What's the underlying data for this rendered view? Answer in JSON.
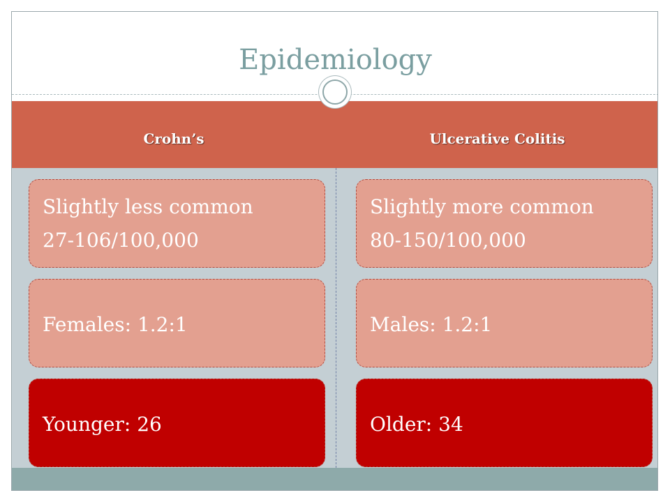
{
  "slide": {
    "title": "Epidemiology",
    "columns": [
      {
        "header": "Crohn’s",
        "cards": [
          {
            "lines": [
              "Slightly less common",
              "27-106/100,000"
            ],
            "style": "light"
          },
          {
            "lines": [
              "Females: 1.2:1"
            ],
            "style": "light"
          },
          {
            "lines": [
              "Younger: 26"
            ],
            "style": "dark"
          }
        ]
      },
      {
        "header": "Ulcerative Colitis",
        "cards": [
          {
            "lines": [
              "Slightly more common",
              "80-150/100,000"
            ],
            "style": "light"
          },
          {
            "lines": [
              "Males: 1.2:1"
            ],
            "style": "light"
          },
          {
            "lines": [
              "Older: 34"
            ],
            "style": "dark"
          }
        ]
      }
    ]
  },
  "colors": {
    "title": "#7a9ea0",
    "header_band": "#cf634c",
    "body_band": "#c4cfd4",
    "footer_band": "#8eaaaa",
    "card_light": "#e3a090",
    "card_dark": "#c00000"
  }
}
